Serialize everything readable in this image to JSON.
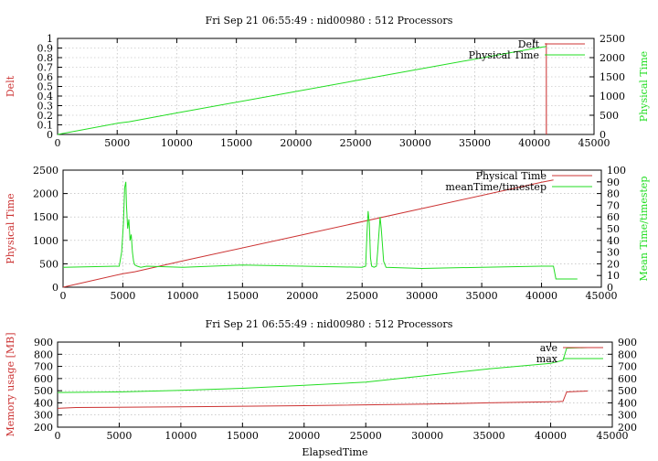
{
  "colors": {
    "red": "#cc3333",
    "green": "#22dd22"
  },
  "chart_data": [
    {
      "type": "line",
      "title": "Fri Sep 21 06:55:49 : nid00980 : 512 Processors",
      "xlabel": "",
      "ylabel_left": "Delt",
      "ylabel_right": "Physical Time",
      "xlim": [
        0,
        45000
      ],
      "ylim_left": [
        0,
        1
      ],
      "ylim_right": [
        0,
        2500
      ],
      "xticks": [
        "0",
        "5000",
        "10000",
        "15000",
        "20000",
        "25000",
        "30000",
        "35000",
        "40000",
        "45000"
      ],
      "yticks_left": [
        "0",
        "0.1",
        "0.2",
        "0.3",
        "0.4",
        "0.5",
        "0.6",
        "0.7",
        "0.8",
        "0.9",
        "1"
      ],
      "yticks_right": [
        "0",
        "500",
        "1000",
        "1500",
        "2000",
        "2500"
      ],
      "grid": true,
      "legend": "top-right",
      "series": [
        {
          "name": "Delt",
          "axis": "left",
          "color": "#cc3333",
          "x": [
            40995,
            41000,
            41005,
            41010
          ],
          "y": [
            0,
            0.95,
            0.02,
            0
          ]
        },
        {
          "name": "Physical Time",
          "axis": "right",
          "color": "#22dd22",
          "x": [
            0,
            5000,
            6000,
            10000,
            20000,
            30000,
            40000,
            41000
          ],
          "y": [
            0,
            290,
            330,
            560,
            1120,
            1680,
            2240,
            2290
          ]
        }
      ]
    },
    {
      "type": "line",
      "title": "",
      "xlabel": "",
      "ylabel_left": "Physical Time",
      "ylabel_right": "Mean Time/timestep",
      "xlim": [
        0,
        45000
      ],
      "ylim_left": [
        0,
        2500
      ],
      "ylim_right": [
        0,
        100
      ],
      "xticks": [
        "0",
        "5000",
        "10000",
        "15000",
        "20000",
        "25000",
        "30000",
        "35000",
        "40000",
        "45000"
      ],
      "yticks_left": [
        "0",
        "500",
        "1000",
        "1500",
        "2000",
        "2500"
      ],
      "yticks_right": [
        "0",
        "10",
        "20",
        "30",
        "40",
        "50",
        "60",
        "70",
        "80",
        "90",
        "100"
      ],
      "grid": true,
      "legend": "top-right",
      "series": [
        {
          "name": "Physical Time",
          "axis": "left",
          "color": "#cc3333",
          "x": [
            0,
            5000,
            6000,
            10000,
            20000,
            30000,
            40000,
            41000
          ],
          "y": [
            0,
            290,
            330,
            560,
            1120,
            1680,
            2240,
            2290
          ]
        },
        {
          "name": "meanTime/timestep",
          "axis": "right",
          "color": "#22dd22",
          "x": [
            0,
            4700,
            4900,
            5050,
            5150,
            5250,
            5300,
            5400,
            5500,
            5600,
            5700,
            5800,
            5900,
            6000,
            6200,
            6500,
            7000,
            10000,
            15000,
            20000,
            25000,
            25300,
            25400,
            25500,
            25600,
            25700,
            25800,
            26000,
            26200,
            26300,
            26500,
            26600,
            26800,
            27000,
            30000,
            35000,
            40000,
            41000,
            41200,
            43000
          ],
          "y": [
            17,
            18,
            30,
            55,
            85,
            90,
            70,
            50,
            58,
            40,
            45,
            30,
            22,
            19,
            18,
            17,
            18,
            17,
            19,
            18,
            17,
            18,
            45,
            65,
            55,
            25,
            18,
            17,
            18,
            30,
            60,
            50,
            22,
            17,
            16,
            17,
            18,
            18,
            7,
            7
          ]
        }
      ]
    },
    {
      "type": "line",
      "title": "Fri Sep 21 06:55:49 : nid00980 : 512 Processors",
      "xlabel": "ElapsedTime",
      "ylabel_left": "Memory usage [MB]",
      "ylabel_right": "",
      "xlim": [
        0,
        45000
      ],
      "ylim_left": [
        200,
        900
      ],
      "ylim_right": [
        200,
        900
      ],
      "xticks": [
        "0",
        "5000",
        "10000",
        "15000",
        "20000",
        "25000",
        "30000",
        "35000",
        "40000",
        "45000"
      ],
      "yticks_left": [
        "200",
        "300",
        "400",
        "500",
        "600",
        "700",
        "800",
        "900"
      ],
      "yticks_right": [
        "200",
        "300",
        "400",
        "500",
        "600",
        "700",
        "800",
        "900"
      ],
      "grid": true,
      "legend": "top-right",
      "series": [
        {
          "name": "ave",
          "axis": "left",
          "color": "#cc3333",
          "x": [
            0,
            1500,
            10000,
            20000,
            30000,
            35000,
            40500,
            41000,
            41300,
            43000
          ],
          "y": [
            355,
            362,
            368,
            377,
            390,
            400,
            410,
            412,
            490,
            497
          ]
        },
        {
          "name": "max",
          "axis": "left",
          "color": "#22dd22",
          "x": [
            0,
            5000,
            10000,
            15000,
            20000,
            25000,
            30000,
            35000,
            40000,
            41000,
            41300,
            43000
          ],
          "y": [
            485,
            490,
            503,
            520,
            545,
            570,
            625,
            680,
            725,
            750,
            850,
            855
          ]
        }
      ]
    }
  ]
}
